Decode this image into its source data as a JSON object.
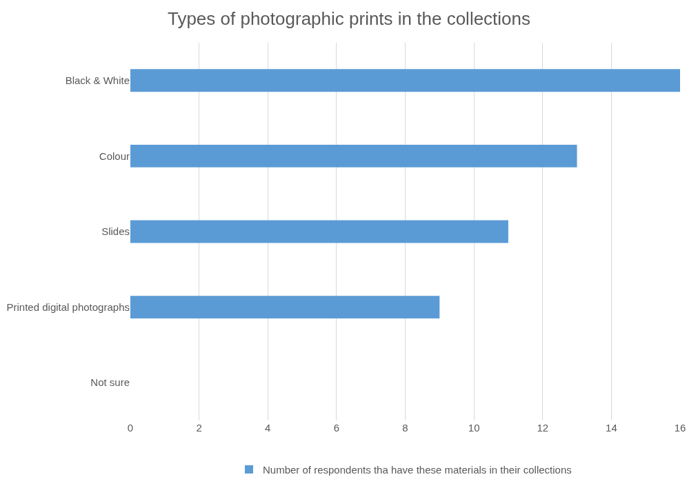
{
  "chart_data": {
    "type": "bar",
    "orientation": "horizontal",
    "title": "Types of photographic prints in the collections",
    "categories": [
      "Black & White",
      "Colour",
      "Slides",
      "Printed digital photographs",
      "Not sure"
    ],
    "series": [
      {
        "name": "Number of respondents tha have these materials in their collections",
        "color": "#5b9bd5",
        "values": [
          16,
          13,
          11,
          9,
          0
        ]
      }
    ],
    "xlim": [
      0,
      16
    ],
    "xticks": [
      0,
      2,
      4,
      6,
      8,
      10,
      12,
      14,
      16
    ],
    "grid": "x",
    "legend": "bottom"
  }
}
